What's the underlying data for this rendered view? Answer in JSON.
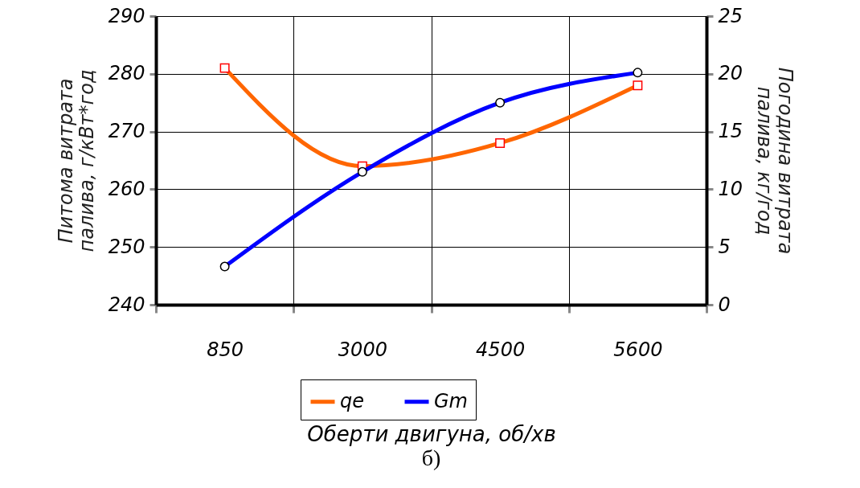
{
  "chart_data": {
    "type": "line",
    "xlabel": "Оберти двигуна, об/хв",
    "ylabel": "Питома витрата\nпалива, г/кВт*год",
    "y2label": "Погодина витрата\nпалива, кг/год",
    "categories": [
      "850",
      "3000",
      "4500",
      "5600"
    ],
    "series": [
      {
        "name": "qe",
        "color": "#ff6600",
        "values": [
          281,
          264,
          268,
          278
        ],
        "marker": "square"
      },
      {
        "name": "Gm",
        "color": "#0000ff",
        "values": [
          3.3,
          11.5,
          17.5,
          20.1
        ],
        "marker": "circle",
        "axis": "y2"
      }
    ],
    "ylim": [
      240,
      290
    ],
    "yticks": [
      240,
      250,
      260,
      270,
      280,
      290
    ],
    "y2lim": [
      0,
      25
    ],
    "y2ticks": [
      0,
      5,
      10,
      15,
      20,
      25
    ],
    "grid": true,
    "legend": "bottom",
    "annotations": [
      "б)"
    ]
  }
}
